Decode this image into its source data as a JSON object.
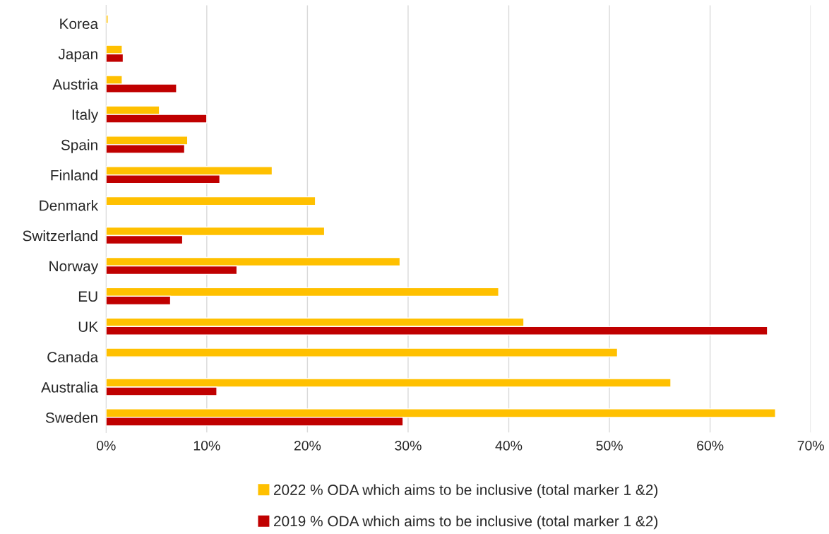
{
  "chart_data": {
    "type": "bar",
    "orientation": "horizontal",
    "categories": [
      "Korea",
      "Japan",
      "Austria",
      "Italy",
      "Spain",
      "Finland",
      "Denmark",
      "Switzerland",
      "Norway",
      "EU",
      "UK",
      "Canada",
      "Australia",
      "Sweden"
    ],
    "series": [
      {
        "name": "2022 % ODA which aims to be inclusive (total marker 1 &2)",
        "color": "#ffc000",
        "values": [
          0.2,
          1.6,
          1.6,
          5.3,
          8.1,
          16.5,
          20.8,
          21.7,
          29.2,
          39.0,
          41.5,
          50.8,
          56.1,
          66.5
        ]
      },
      {
        "name": "2019 % ODA which aims to be inclusive (total marker 1 &2)",
        "color": "#c00000",
        "values": [
          null,
          1.7,
          7.0,
          10.0,
          7.8,
          11.3,
          null,
          7.6,
          13.0,
          6.4,
          65.7,
          null,
          11.0,
          29.5
        ]
      }
    ],
    "xlim": [
      0,
      70
    ],
    "xticks": [
      {
        "value": 0,
        "label": "0%"
      },
      {
        "value": 10,
        "label": "10%"
      },
      {
        "value": 20,
        "label": "20%"
      },
      {
        "value": 30,
        "label": "30%"
      },
      {
        "value": 40,
        "label": "40%"
      },
      {
        "value": 50,
        "label": "50%"
      },
      {
        "value": 60,
        "label": "60%"
      },
      {
        "value": 70,
        "label": "70%"
      }
    ],
    "grid": "x",
    "legend": "bottom"
  }
}
